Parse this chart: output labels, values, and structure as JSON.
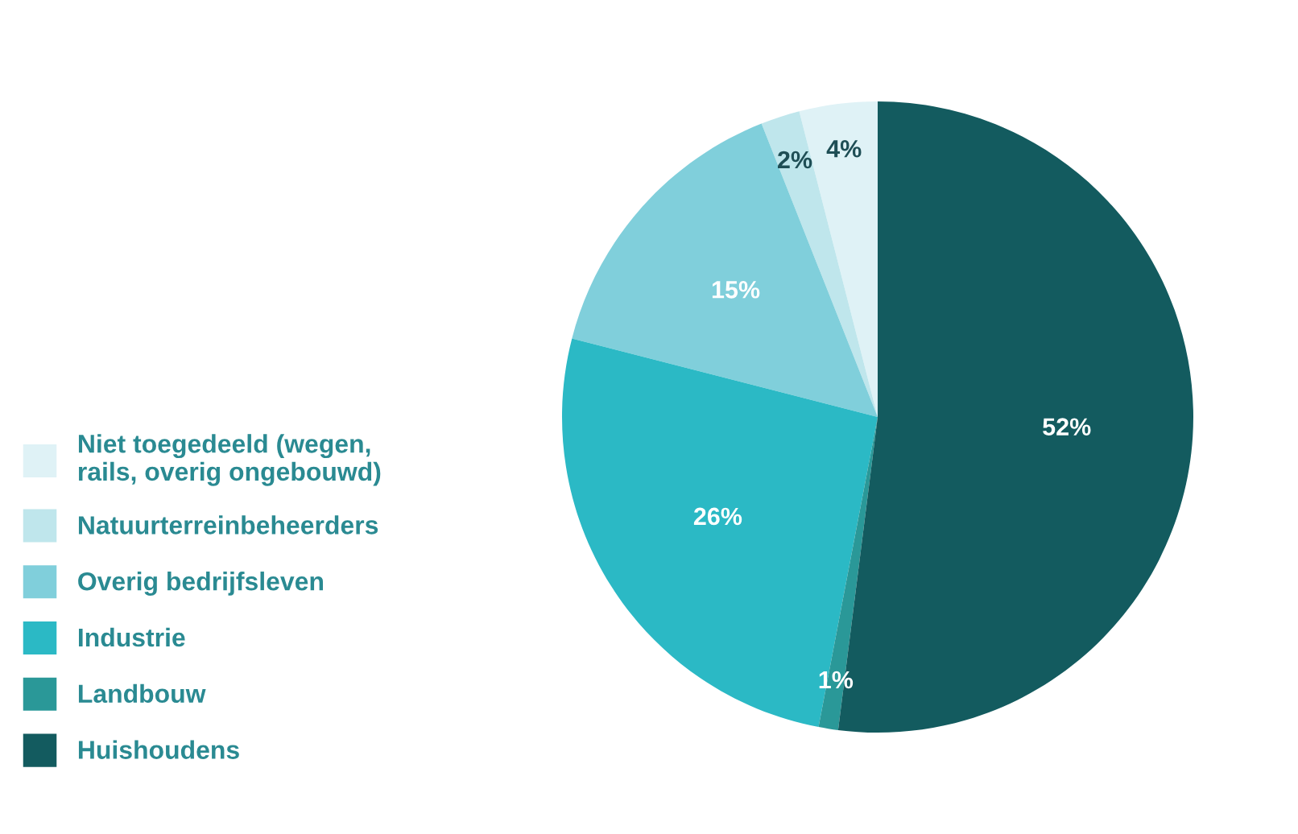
{
  "chart_data": {
    "type": "pie",
    "categories": [
      "Niet toegedeeld (wegen,\nrails, overig ongebouwd)",
      "Natuurterreinbeheerders",
      "Overig bedrijfsleven",
      "Industrie",
      "Landbouw",
      "Huishoudens"
    ],
    "values": [
      4,
      2,
      15,
      26,
      1,
      52
    ],
    "value_labels": [
      "4%",
      "2%",
      "15%",
      "26%",
      "1%",
      "52%"
    ],
    "colors": [
      "#dff2f6",
      "#bfe6ec",
      "#80cfdb",
      "#2bb9c5",
      "#2a9898",
      "#135b5f"
    ],
    "legend": "left"
  }
}
